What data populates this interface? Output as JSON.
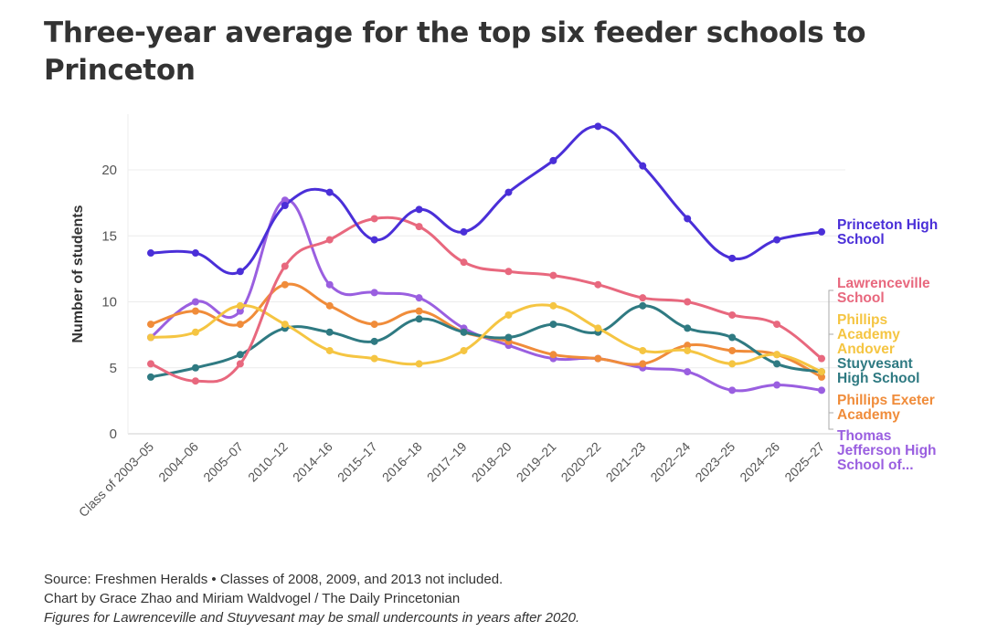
{
  "title": "Three-year average for the top six feeder schools to Princeton",
  "notes": {
    "source": "Source: Freshmen Heralds • Classes of 2008, 2009, and 2013 not included.",
    "credit": "Chart by Grace Zhao and Miriam Waldvogel / The Daily Princetonian",
    "caveat": "Figures for Lawrenceville and Stuyvesant may be small undercounts in years after 2020."
  },
  "chart_data": {
    "type": "line",
    "title": "Three-year average for the top six feeder schools to Princeton",
    "xlabel": "",
    "ylabel": "Number of students",
    "ylim": [
      0,
      24
    ],
    "yticks": [
      0,
      5,
      10,
      15,
      20
    ],
    "grid": true,
    "legend": "direct labels at right end of lines",
    "categories": [
      "Class of 2003–05",
      "2004–06",
      "2005–07",
      "2010–12",
      "2014–16",
      "2015–17",
      "2016–18",
      "2017–19",
      "2018–20",
      "2019–21",
      "2020–22",
      "2021–23",
      "2022–24",
      "2023–25",
      "2024–26",
      "2025–27"
    ],
    "series": [
      {
        "name": "Princeton High School",
        "color": "#4a2fd8",
        "values": [
          13.7,
          13.7,
          12.3,
          17.3,
          18.3,
          14.7,
          17.0,
          15.3,
          18.3,
          20.7,
          23.3,
          20.3,
          16.3,
          13.3,
          14.7,
          15.3
        ]
      },
      {
        "name": "Lawrenceville School",
        "color": "#e8687e",
        "values": [
          5.3,
          4.0,
          5.3,
          12.7,
          14.7,
          16.3,
          15.7,
          13.0,
          12.3,
          12.0,
          11.3,
          10.3,
          10.0,
          9.0,
          8.3,
          5.7
        ]
      },
      {
        "name": "Phillips Academy Andover",
        "color": "#f5c542",
        "values": [
          7.3,
          7.7,
          9.7,
          8.3,
          6.3,
          5.7,
          5.3,
          6.3,
          9.0,
          9.7,
          8.0,
          6.3,
          6.3,
          5.3,
          6.0,
          4.7
        ]
      },
      {
        "name": "Stuyvesant High School",
        "color": "#2f7a82",
        "values": [
          4.3,
          5.0,
          6.0,
          8.0,
          7.7,
          7.0,
          8.7,
          7.7,
          7.3,
          8.3,
          7.7,
          9.7,
          8.0,
          7.3,
          5.3,
          4.7
        ]
      },
      {
        "name": "Phillips Exeter Academy",
        "color": "#f08c3a",
        "values": [
          8.3,
          9.3,
          8.3,
          11.3,
          9.7,
          8.3,
          9.3,
          7.7,
          7.0,
          6.0,
          5.7,
          5.3,
          6.7,
          6.3,
          6.0,
          4.3
        ]
      },
      {
        "name": "Thomas Jefferson High School of...",
        "color": "#9a5fe0",
        "values": [
          7.3,
          10.0,
          9.3,
          17.7,
          11.3,
          10.7,
          10.3,
          8.0,
          6.7,
          5.7,
          5.7,
          5.0,
          4.7,
          3.3,
          3.7,
          3.3
        ]
      }
    ],
    "series_labels": [
      [
        "Princeton High",
        "School"
      ],
      [
        "Lawrenceville",
        "School"
      ],
      [
        "Phillips",
        "Academy",
        "Andover"
      ],
      [
        "Stuyvesant",
        "High School"
      ],
      [
        "Phillips Exeter",
        "Academy"
      ],
      [
        "Thomas",
        "Jefferson High",
        "School of..."
      ]
    ]
  }
}
